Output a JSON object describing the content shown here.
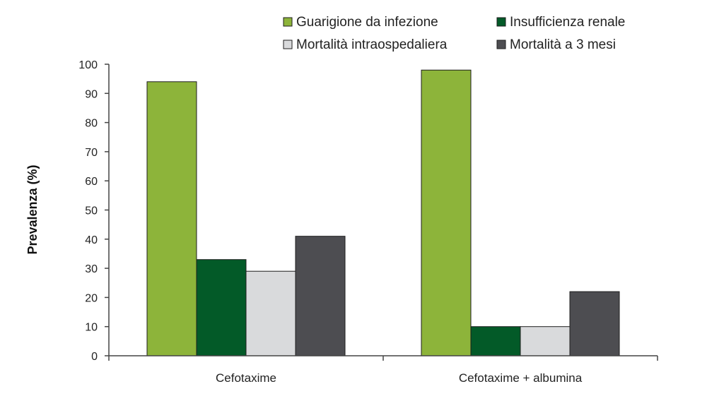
{
  "chart_data": {
    "type": "bar",
    "categories": [
      "Cefotaxime",
      "Cefotaxime + albumina"
    ],
    "series": [
      {
        "name": "Guarigione da infezione",
        "values": [
          94,
          98
        ],
        "color": "#8db43a"
      },
      {
        "name": "Insufficienza renale",
        "values": [
          33,
          10
        ],
        "color": "#035a28"
      },
      {
        "name": "Mortalità intraospedaliera",
        "values": [
          29,
          10
        ],
        "color": "#d9dadc"
      },
      {
        "name": "Mortalità a 3 mesi",
        "values": [
          41,
          22
        ],
        "color": "#4d4d51"
      }
    ],
    "ylabel": "Prevalenza (%)",
    "xlabel": "",
    "ylim": [
      0,
      100
    ],
    "yticks": [
      0,
      10,
      20,
      30,
      40,
      50,
      60,
      70,
      80,
      90,
      100
    ],
    "grid": false,
    "legend_position": "top"
  }
}
